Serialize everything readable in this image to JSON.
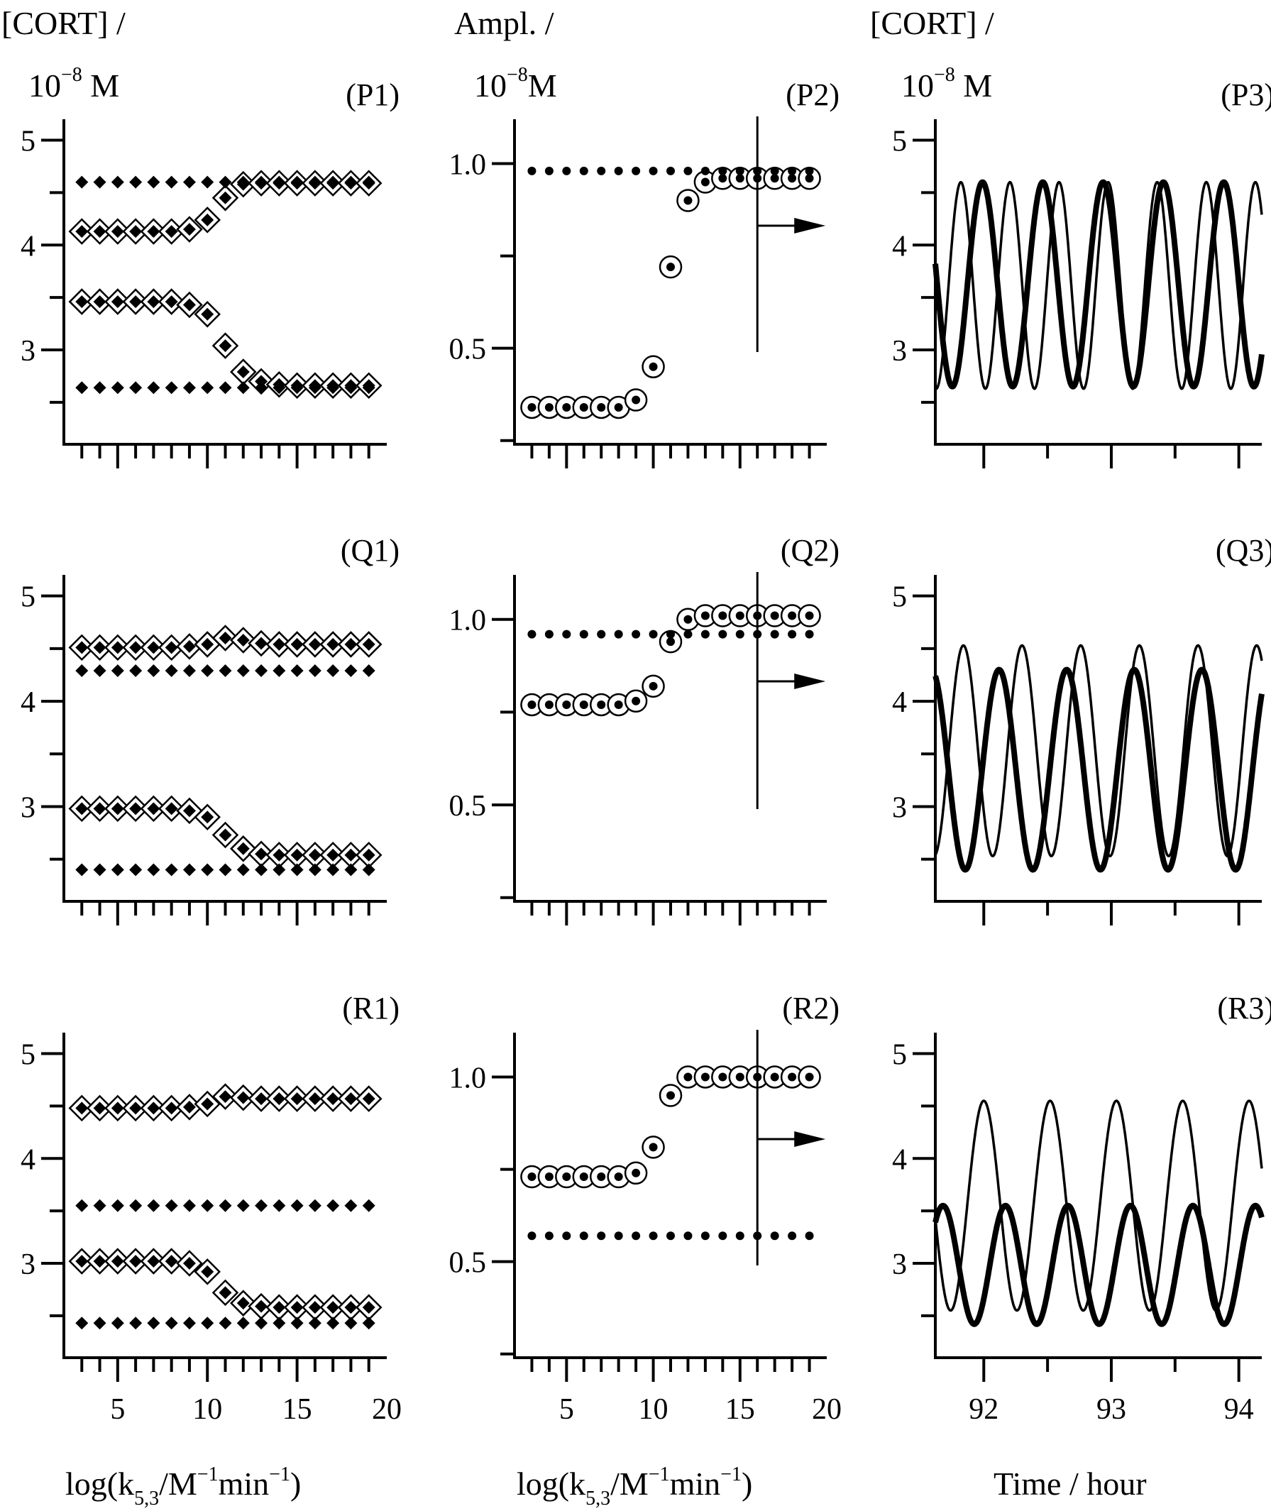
{
  "ylabels": {
    "col1": {
      "line1": "[CORT] /",
      "line2_base": "10",
      "line2_exp": "−8",
      "line2_unit": " M"
    },
    "col2": {
      "line1": "Ampl. /",
      "line2_base": "10",
      "line2_exp": "−8",
      "line2_unit": "M"
    },
    "col3": {
      "line1": "[CORT] /",
      "line2_base": "10",
      "line2_exp": "−8",
      "line2_unit": " M"
    }
  },
  "xlabels": {
    "col1": {
      "prefix": "log(k",
      "sub": "5,3",
      "mid": "/M",
      "sup": "−1",
      "suffix": "min",
      "sup2": "−1",
      "end": ")"
    },
    "col2": {
      "prefix": "log(k",
      "sub": "5,3",
      "mid": "/M",
      "sup": "−1",
      "suffix": "min",
      "sup2": "−1",
      "end": ")"
    },
    "col3": {
      "text": "Time / hour"
    }
  },
  "chart_data": [
    {
      "panel": "P1",
      "type": "scatter",
      "xticks": [
        "5",
        "10",
        "15",
        "20"
      ],
      "yticks": [
        "3",
        "4",
        "5"
      ],
      "xlim": [
        2,
        20
      ],
      "ylim": [
        2.1,
        5.2
      ],
      "x": [
        3,
        4,
        5,
        6,
        7,
        8,
        9,
        10,
        11,
        12,
        13,
        14,
        15,
        16,
        17,
        18,
        19
      ],
      "series": [
        {
          "marker": "open-diamond",
          "values": [
            4.13,
            4.13,
            4.13,
            4.13,
            4.13,
            4.13,
            4.15,
            4.24,
            4.45,
            4.58,
            4.59,
            4.59,
            4.59,
            4.59,
            4.59,
            4.59,
            4.59
          ]
        },
        {
          "marker": "open-diamond",
          "values": [
            3.46,
            3.46,
            3.46,
            3.46,
            3.46,
            3.46,
            3.43,
            3.34,
            3.04,
            2.79,
            2.7,
            2.67,
            2.66,
            2.66,
            2.66,
            2.66,
            2.66
          ]
        },
        {
          "marker": "filled-diamond",
          "values": [
            4.6,
            4.6,
            4.6,
            4.6,
            4.6,
            4.6,
            4.6,
            4.6,
            4.6,
            4.6,
            4.6,
            4.6,
            4.6,
            4.6,
            4.6,
            4.6,
            4.6
          ]
        },
        {
          "marker": "filled-diamond",
          "values": [
            2.64,
            2.64,
            2.64,
            2.64,
            2.64,
            2.64,
            2.64,
            2.64,
            2.64,
            2.64,
            2.64,
            2.64,
            2.64,
            2.64,
            2.64,
            2.64,
            2.64
          ]
        }
      ]
    },
    {
      "panel": "P2",
      "type": "scatter",
      "xticks": [
        "5",
        "10",
        "15",
        "20"
      ],
      "yticks": [
        "0.5",
        "1.0"
      ],
      "xlim": [
        2,
        20
      ],
      "ylim": [
        0.24,
        1.12
      ],
      "x": [
        3,
        4,
        5,
        6,
        7,
        8,
        9,
        10,
        11,
        12,
        13,
        14,
        15,
        16,
        17,
        18,
        19
      ],
      "vline_x": 16,
      "series": [
        {
          "marker": "open-circle",
          "values": [
            0.34,
            0.34,
            0.34,
            0.34,
            0.34,
            0.34,
            0.36,
            0.45,
            0.72,
            0.9,
            0.95,
            0.96,
            0.96,
            0.96,
            0.96,
            0.96,
            0.96
          ]
        },
        {
          "marker": "small-dot",
          "values": [
            0.98,
            0.98,
            0.98,
            0.98,
            0.98,
            0.98,
            0.98,
            0.98,
            0.98,
            0.98,
            0.98,
            0.98,
            0.98,
            0.98,
            0.98,
            0.98,
            0.98
          ]
        }
      ]
    },
    {
      "panel": "P3",
      "type": "line",
      "xticks": [
        "92",
        "93",
        "94"
      ],
      "yticks": [
        "3",
        "4",
        "5"
      ],
      "xlim": [
        91.62,
        94.18
      ],
      "ylim": [
        2.1,
        5.2
      ],
      "series": [
        {
          "style": "thin",
          "min": 2.63,
          "max": 4.6,
          "period": 0.385,
          "peak_at": 91.82
        },
        {
          "style": "thick",
          "min": 2.65,
          "max": 4.6,
          "period": 0.473,
          "peak_at": 91.99
        }
      ]
    },
    {
      "panel": "Q1",
      "type": "scatter",
      "xticks": [
        "5",
        "10",
        "15",
        "20"
      ],
      "yticks": [
        "3",
        "4",
        "5"
      ],
      "xlim": [
        2,
        20
      ],
      "ylim": [
        2.1,
        5.2
      ],
      "x": [
        3,
        4,
        5,
        6,
        7,
        8,
        9,
        10,
        11,
        12,
        13,
        14,
        15,
        16,
        17,
        18,
        19
      ],
      "series": [
        {
          "marker": "open-diamond",
          "values": [
            4.51,
            4.51,
            4.51,
            4.51,
            4.51,
            4.51,
            4.52,
            4.54,
            4.6,
            4.58,
            4.55,
            4.54,
            4.54,
            4.54,
            4.54,
            4.54,
            4.54
          ]
        },
        {
          "marker": "open-diamond",
          "values": [
            2.98,
            2.98,
            2.98,
            2.98,
            2.98,
            2.98,
            2.96,
            2.9,
            2.73,
            2.6,
            2.55,
            2.54,
            2.54,
            2.54,
            2.54,
            2.54,
            2.54
          ]
        },
        {
          "marker": "filled-diamond",
          "values": [
            4.29,
            4.29,
            4.29,
            4.29,
            4.29,
            4.29,
            4.29,
            4.29,
            4.29,
            4.29,
            4.29,
            4.29,
            4.29,
            4.29,
            4.29,
            4.29,
            4.29
          ]
        },
        {
          "marker": "filled-diamond",
          "values": [
            2.4,
            2.4,
            2.4,
            2.4,
            2.4,
            2.4,
            2.4,
            2.4,
            2.4,
            2.4,
            2.4,
            2.4,
            2.4,
            2.4,
            2.4,
            2.4,
            2.4
          ]
        }
      ]
    },
    {
      "panel": "Q2",
      "type": "scatter",
      "xticks": [
        "5",
        "10",
        "15",
        "20"
      ],
      "yticks": [
        "0.5",
        "1.0"
      ],
      "xlim": [
        2,
        20
      ],
      "ylim": [
        0.24,
        1.12
      ],
      "x": [
        3,
        4,
        5,
        6,
        7,
        8,
        9,
        10,
        11,
        12,
        13,
        14,
        15,
        16,
        17,
        18,
        19
      ],
      "vline_x": 16,
      "series": [
        {
          "marker": "open-circle",
          "values": [
            0.77,
            0.77,
            0.77,
            0.77,
            0.77,
            0.77,
            0.78,
            0.82,
            0.94,
            1.0,
            1.01,
            1.01,
            1.01,
            1.01,
            1.01,
            1.01,
            1.01
          ]
        },
        {
          "marker": "small-dot",
          "values": [
            0.96,
            0.96,
            0.96,
            0.96,
            0.96,
            0.96,
            0.96,
            0.96,
            0.96,
            0.96,
            0.96,
            0.96,
            0.96,
            0.96,
            0.96,
            0.96,
            0.96
          ]
        }
      ]
    },
    {
      "panel": "Q3",
      "type": "line",
      "xticks": [
        "92",
        "93",
        "94"
      ],
      "yticks": [
        "3",
        "4",
        "5"
      ],
      "xlim": [
        91.62,
        94.18
      ],
      "ylim": [
        2.1,
        5.2
      ],
      "series": [
        {
          "style": "thin",
          "min": 2.53,
          "max": 4.53,
          "period": 0.46,
          "peak_at": 91.84
        },
        {
          "style": "thick",
          "min": 2.4,
          "max": 4.3,
          "period": 0.53,
          "peak_at": 92.12
        }
      ]
    },
    {
      "panel": "R1",
      "type": "scatter",
      "xticks": [
        "5",
        "10",
        "15",
        "20"
      ],
      "yticks": [
        "3",
        "4",
        "5"
      ],
      "xlim": [
        2,
        20
      ],
      "ylim": [
        2.1,
        5.2
      ],
      "x": [
        3,
        4,
        5,
        6,
        7,
        8,
        9,
        10,
        11,
        12,
        13,
        14,
        15,
        16,
        17,
        18,
        19
      ],
      "series": [
        {
          "marker": "open-diamond",
          "values": [
            4.48,
            4.48,
            4.48,
            4.48,
            4.48,
            4.48,
            4.49,
            4.52,
            4.59,
            4.58,
            4.57,
            4.57,
            4.57,
            4.57,
            4.57,
            4.57,
            4.57
          ]
        },
        {
          "marker": "open-diamond",
          "values": [
            3.02,
            3.02,
            3.02,
            3.02,
            3.02,
            3.02,
            3.0,
            2.92,
            2.72,
            2.62,
            2.59,
            2.58,
            2.58,
            2.58,
            2.58,
            2.58,
            2.58
          ]
        },
        {
          "marker": "filled-diamond",
          "values": [
            3.55,
            3.55,
            3.55,
            3.55,
            3.55,
            3.55,
            3.55,
            3.55,
            3.55,
            3.55,
            3.55,
            3.55,
            3.55,
            3.55,
            3.55,
            3.55,
            3.55
          ]
        },
        {
          "marker": "filled-diamond",
          "values": [
            2.43,
            2.43,
            2.43,
            2.43,
            2.43,
            2.43,
            2.43,
            2.43,
            2.43,
            2.43,
            2.43,
            2.43,
            2.43,
            2.43,
            2.43,
            2.43,
            2.43
          ]
        }
      ]
    },
    {
      "panel": "R2",
      "type": "scatter",
      "xticks": [
        "5",
        "10",
        "15",
        "20"
      ],
      "yticks": [
        "0.5",
        "1.0"
      ],
      "xlim": [
        2,
        20
      ],
      "ylim": [
        0.24,
        1.12
      ],
      "x": [
        3,
        4,
        5,
        6,
        7,
        8,
        9,
        10,
        11,
        12,
        13,
        14,
        15,
        16,
        17,
        18,
        19
      ],
      "vline_x": 16,
      "series": [
        {
          "marker": "open-circle",
          "values": [
            0.73,
            0.73,
            0.73,
            0.73,
            0.73,
            0.73,
            0.74,
            0.81,
            0.95,
            1.0,
            1.0,
            1.0,
            1.0,
            1.0,
            1.0,
            1.0,
            1.0
          ]
        },
        {
          "marker": "small-dot",
          "values": [
            0.57,
            0.57,
            0.57,
            0.57,
            0.57,
            0.57,
            0.57,
            0.57,
            0.57,
            0.57,
            0.57,
            0.57,
            0.57,
            0.57,
            0.57,
            0.57,
            0.57
          ]
        }
      ]
    },
    {
      "panel": "R3",
      "type": "line",
      "xticks": [
        "92",
        "93",
        "94"
      ],
      "yticks": [
        "3",
        "4",
        "5"
      ],
      "xlim": [
        91.62,
        94.18
      ],
      "ylim": [
        2.1,
        5.2
      ],
      "series": [
        {
          "style": "thin",
          "min": 2.55,
          "max": 4.55,
          "period": 0.52,
          "peak_at": 92.0
        },
        {
          "style": "thick",
          "min": 2.42,
          "max": 3.55,
          "period": 0.49,
          "peak_at": 92.17
        }
      ]
    }
  ]
}
